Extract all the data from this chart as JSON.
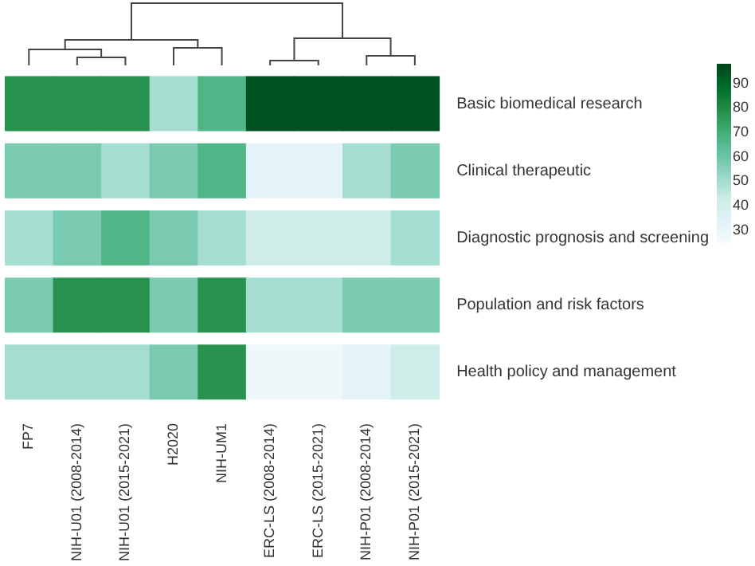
{
  "chart_data": {
    "type": "heatmap",
    "categories": [
      "FP7",
      "NIH-U01 (2008-2014)",
      "NIH-U01 (2015-2021)",
      "H2020",
      "NIH-UM1",
      "ERC-LS (2008-2014)",
      "ERC-LS (2015-2021)",
      "NIH-P01 (2008-2014)",
      "NIH-P01 (2015-2021)"
    ],
    "y_categories": [
      "Basic biomedical research",
      "Clinical therapeutic",
      "Diagnostic prognosis and screening",
      "Population and risk factors",
      "Health policy and management"
    ],
    "cells": [
      [
        78,
        78,
        78,
        50,
        67,
        95,
        95,
        95,
        95
      ],
      [
        58,
        58,
        50,
        58,
        67,
        33,
        33,
        50,
        58
      ],
      [
        50,
        58,
        67,
        58,
        50,
        42,
        42,
        42,
        50
      ],
      [
        58,
        78,
        78,
        58,
        78,
        50,
        50,
        58,
        58
      ],
      [
        50,
        50,
        50,
        58,
        78,
        28,
        28,
        33,
        42
      ]
    ],
    "clim": [
      25,
      98
    ],
    "cticks": [
      30,
      40,
      50,
      60,
      70,
      80,
      90
    ]
  }
}
